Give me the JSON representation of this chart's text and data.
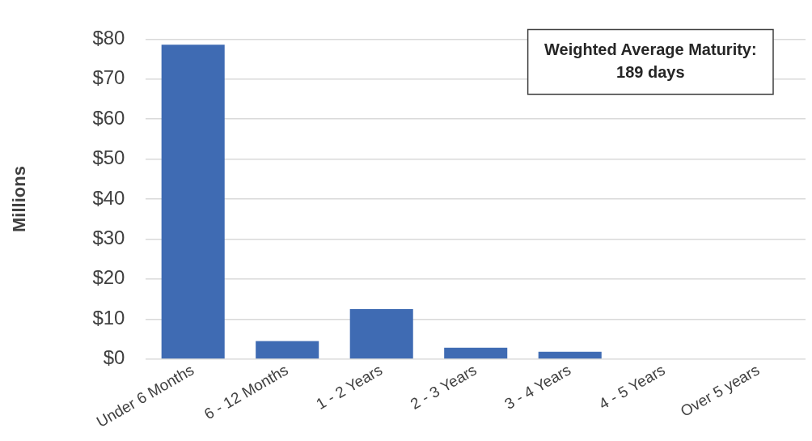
{
  "chart_data": {
    "type": "bar",
    "ylabel": "Millions",
    "categories": [
      "Under 6 Months",
      "6 - 12 Months",
      "1 - 2 Years",
      "2 - 3 Years",
      "3 - 4 Years",
      "4 - 5 Years",
      "Over 5 years"
    ],
    "values": [
      78.6,
      4.5,
      12.5,
      2.8,
      1.8,
      0,
      0
    ],
    "color": "#3f6bb3",
    "ylim": [
      0,
      80
    ],
    "yticks": [
      {
        "value": 0,
        "label": "$0"
      },
      {
        "value": 10,
        "label": "$10"
      },
      {
        "value": 20,
        "label": "$20"
      },
      {
        "value": 30,
        "label": "$30"
      },
      {
        "value": 40,
        "label": "$40"
      },
      {
        "value": 50,
        "label": "$50"
      },
      {
        "value": 60,
        "label": "$60"
      },
      {
        "value": 70,
        "label": "$70"
      },
      {
        "value": 80,
        "label": "$80"
      }
    ],
    "grid": "y",
    "legend": false,
    "annotations": [
      "Weighted Average Maturity:\n189 days"
    ]
  }
}
